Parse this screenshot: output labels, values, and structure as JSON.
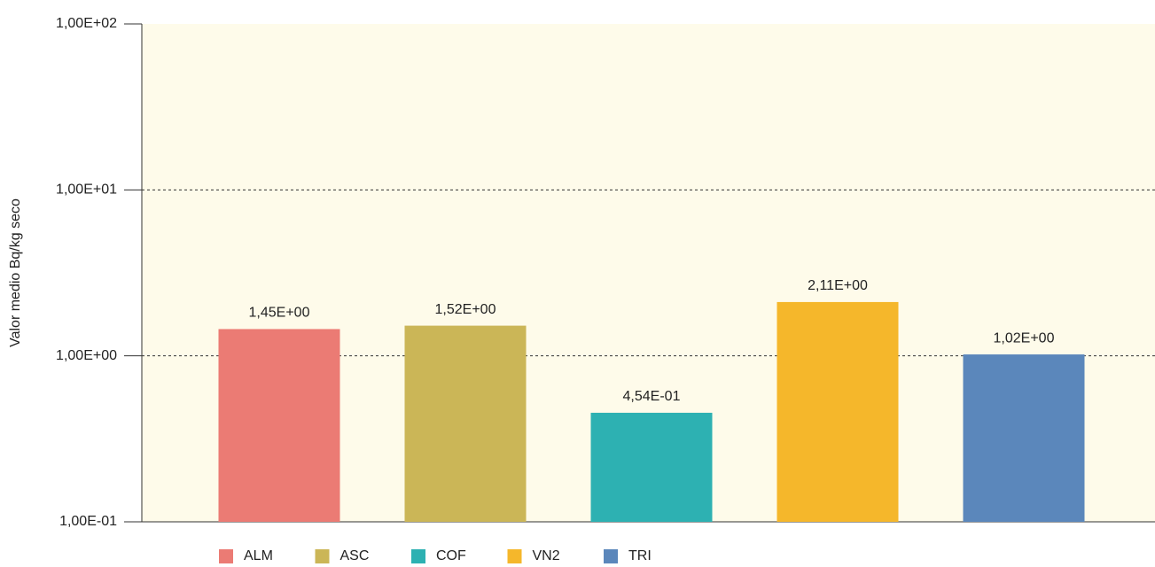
{
  "chart_data": {
    "type": "bar",
    "ylabel": "Valor medio Bq/kg seco",
    "categories": [
      "ALM",
      "ASC",
      "COF",
      "VN2",
      "TRI"
    ],
    "values": [
      1.45,
      1.52,
      0.454,
      2.11,
      1.02
    ],
    "value_labels": [
      "1,45E+00",
      "1,52E+00",
      "4,54E-01",
      "2,11E+00",
      "1,02E+00"
    ],
    "colors": [
      "#eb7b74",
      "#cbb657",
      "#2db1b2",
      "#f5b72b",
      "#5b87bb"
    ],
    "log_scale": true,
    "ylim": [
      0.1,
      100
    ],
    "yticks": [
      {
        "value": 0.1,
        "label": "1,00E-01"
      },
      {
        "value": 1,
        "label": "1,00E+00"
      },
      {
        "value": 10,
        "label": "1,00E+01"
      },
      {
        "value": 100,
        "label": "1,00E+02"
      }
    ],
    "grid": true,
    "legend": "bottom"
  }
}
